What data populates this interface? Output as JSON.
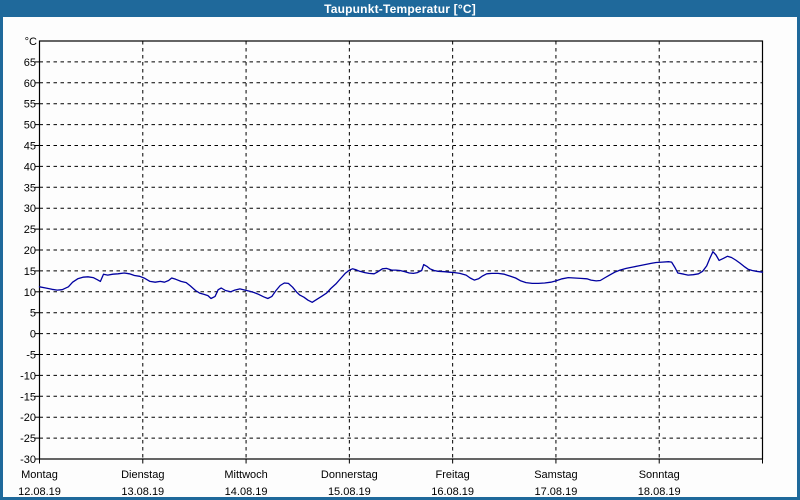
{
  "window": {
    "title": "Taupunkt-Temperatur [°C]",
    "titlebar_color": "#1f699b",
    "border_color": "#1f699b",
    "plot_background": "#fdfdfd"
  },
  "chart_data": {
    "type": "line",
    "title": "Taupunkt-Temperatur [°C]",
    "ylabel": "°C",
    "ylim": [
      -30,
      70
    ],
    "ytick_step": 5,
    "ytick_labels": [
      "65",
      "60",
      "55",
      "50",
      "45",
      "40",
      "35",
      "30",
      "25",
      "20",
      "15",
      "10",
      "5",
      "0",
      "-5",
      "-10",
      "-15",
      "-20",
      "-25",
      "-30"
    ],
    "grid": {
      "style": "dashed",
      "color": "#000000",
      "horizontal": true,
      "vertical": true
    },
    "frame_color": "#000000",
    "legend_position": "none",
    "x_categories": [
      {
        "name": "Montag",
        "date": "12.08.19"
      },
      {
        "name": "Dienstag",
        "date": "13.08.19"
      },
      {
        "name": "Mittwoch",
        "date": "14.08.19"
      },
      {
        "name": "Donnerstag",
        "date": "15.08.19"
      },
      {
        "name": "Freitag",
        "date": "16.08.19"
      },
      {
        "name": "Samstag",
        "date": "17.08.19"
      },
      {
        "name": "Sonntag",
        "date": "18.08.19"
      }
    ],
    "series": [
      {
        "name": "Taupunkt-Temperatur",
        "unit": "°C",
        "color": "#0000a0",
        "x_unit": "days-since-monday-00h",
        "points": [
          [
            0,
            11.2
          ],
          [
            0.06,
            10.9
          ],
          [
            0.12,
            10.6
          ],
          [
            0.17,
            10.4
          ],
          [
            0.22,
            10.5
          ],
          [
            0.28,
            11.2
          ],
          [
            0.32,
            12.3
          ],
          [
            0.37,
            13.1
          ],
          [
            0.42,
            13.5
          ],
          [
            0.47,
            13.6
          ],
          [
            0.52,
            13.4
          ],
          [
            0.56,
            12.9
          ],
          [
            0.59,
            12.5
          ],
          [
            0.62,
            14.2
          ],
          [
            0.66,
            14.0
          ],
          [
            0.71,
            14.2
          ],
          [
            0.76,
            14.3
          ],
          [
            0.82,
            14.5
          ],
          [
            0.87,
            14.3
          ],
          [
            0.92,
            13.9
          ],
          [
            0.97,
            13.7
          ],
          [
            1.02,
            13.2
          ],
          [
            1.07,
            12.5
          ],
          [
            1.12,
            12.3
          ],
          [
            1.17,
            12.5
          ],
          [
            1.21,
            12.3
          ],
          [
            1.25,
            12.7
          ],
          [
            1.28,
            13.3
          ],
          [
            1.32,
            13.0
          ],
          [
            1.37,
            12.5
          ],
          [
            1.42,
            12.2
          ],
          [
            1.46,
            11.4
          ],
          [
            1.51,
            10.3
          ],
          [
            1.55,
            9.7
          ],
          [
            1.59,
            9.4
          ],
          [
            1.63,
            9.1
          ],
          [
            1.66,
            8.4
          ],
          [
            1.7,
            8.9
          ],
          [
            1.73,
            10.5
          ],
          [
            1.76,
            10.9
          ],
          [
            1.8,
            10.3
          ],
          [
            1.85,
            10.0
          ],
          [
            1.89,
            10.4
          ],
          [
            1.94,
            10.7
          ],
          [
            1.99,
            10.4
          ],
          [
            2.04,
            10.1
          ],
          [
            2.08,
            9.8
          ],
          [
            2.12,
            9.4
          ],
          [
            2.17,
            8.8
          ],
          [
            2.21,
            8.4
          ],
          [
            2.25,
            8.9
          ],
          [
            2.29,
            10.3
          ],
          [
            2.33,
            11.5
          ],
          [
            2.37,
            12.1
          ],
          [
            2.41,
            12.0
          ],
          [
            2.45,
            11.1
          ],
          [
            2.49,
            9.9
          ],
          [
            2.52,
            9.2
          ],
          [
            2.56,
            8.7
          ],
          [
            2.6,
            8.0
          ],
          [
            2.64,
            7.5
          ],
          [
            2.68,
            8.1
          ],
          [
            2.73,
            8.9
          ],
          [
            2.78,
            9.7
          ],
          [
            2.82,
            10.8
          ],
          [
            2.87,
            11.9
          ],
          [
            2.92,
            13.3
          ],
          [
            2.96,
            14.4
          ],
          [
            3.0,
            15.2
          ],
          [
            3.03,
            15.5
          ],
          [
            3.06,
            15.3
          ],
          [
            3.1,
            14.9
          ],
          [
            3.15,
            14.6
          ],
          [
            3.19,
            14.4
          ],
          [
            3.24,
            14.3
          ],
          [
            3.27,
            14.7
          ],
          [
            3.32,
            15.5
          ],
          [
            3.36,
            15.6
          ],
          [
            3.41,
            15.2
          ],
          [
            3.45,
            15.2
          ],
          [
            3.49,
            15.1
          ],
          [
            3.54,
            14.8
          ],
          [
            3.58,
            14.5
          ],
          [
            3.62,
            14.4
          ],
          [
            3.66,
            14.6
          ],
          [
            3.7,
            15.1
          ],
          [
            3.72,
            16.5
          ],
          [
            3.75,
            16.1
          ],
          [
            3.78,
            15.5
          ],
          [
            3.82,
            15.1
          ],
          [
            3.86,
            14.9
          ],
          [
            3.92,
            14.8
          ],
          [
            3.97,
            14.7
          ],
          [
            4.02,
            14.6
          ],
          [
            4.07,
            14.4
          ],
          [
            4.13,
            14.0
          ],
          [
            4.17,
            13.3
          ],
          [
            4.21,
            12.8
          ],
          [
            4.25,
            13.1
          ],
          [
            4.29,
            13.8
          ],
          [
            4.33,
            14.3
          ],
          [
            4.38,
            14.4
          ],
          [
            4.44,
            14.4
          ],
          [
            4.5,
            14.2
          ],
          [
            4.56,
            13.7
          ],
          [
            4.61,
            13.3
          ],
          [
            4.66,
            12.6
          ],
          [
            4.71,
            12.2
          ],
          [
            4.77,
            12.0
          ],
          [
            4.83,
            12.0
          ],
          [
            4.89,
            12.1
          ],
          [
            4.95,
            12.3
          ],
          [
            5.0,
            12.6
          ],
          [
            5.06,
            13.1
          ],
          [
            5.12,
            13.4
          ],
          [
            5.18,
            13.3
          ],
          [
            5.24,
            13.2
          ],
          [
            5.3,
            13.1
          ],
          [
            5.34,
            12.8
          ],
          [
            5.39,
            12.6
          ],
          [
            5.43,
            12.7
          ],
          [
            5.47,
            13.3
          ],
          [
            5.52,
            14.0
          ],
          [
            5.57,
            14.7
          ],
          [
            5.62,
            15.2
          ],
          [
            5.68,
            15.6
          ],
          [
            5.74,
            15.9
          ],
          [
            5.8,
            16.2
          ],
          [
            5.86,
            16.5
          ],
          [
            5.92,
            16.8
          ],
          [
            5.97,
            17.0
          ],
          [
            6.03,
            17.1
          ],
          [
            6.09,
            17.2
          ],
          [
            6.12,
            17.1
          ],
          [
            6.15,
            15.9
          ],
          [
            6.18,
            14.5
          ],
          [
            6.24,
            14.2
          ],
          [
            6.28,
            14.0
          ],
          [
            6.33,
            14.1
          ],
          [
            6.38,
            14.3
          ],
          [
            6.42,
            14.9
          ],
          [
            6.46,
            16.2
          ],
          [
            6.49,
            18.0
          ],
          [
            6.52,
            19.6
          ],
          [
            6.55,
            18.8
          ],
          [
            6.58,
            17.5
          ],
          [
            6.62,
            18.0
          ],
          [
            6.66,
            18.5
          ],
          [
            6.7,
            18.2
          ],
          [
            6.74,
            17.6
          ],
          [
            6.78,
            16.9
          ],
          [
            6.82,
            16.1
          ],
          [
            6.86,
            15.4
          ],
          [
            6.9,
            15.1
          ],
          [
            6.94,
            14.9
          ],
          [
            7.0,
            14.7
          ]
        ]
      }
    ]
  }
}
